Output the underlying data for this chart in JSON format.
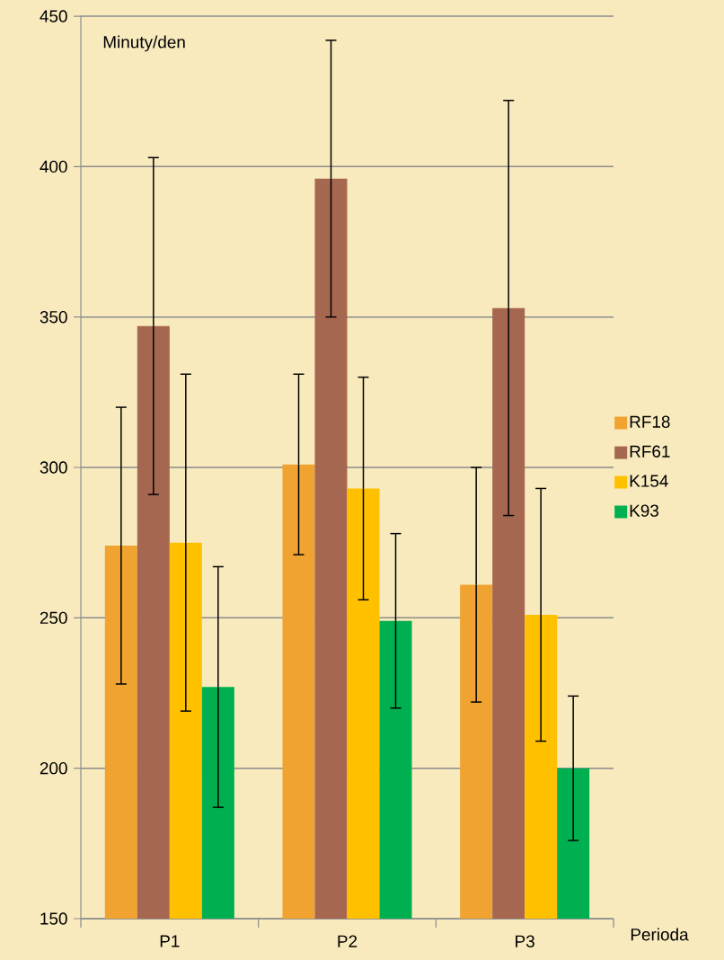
{
  "chart_data": {
    "type": "bar",
    "ylabel": "Minuty/den",
    "xlabel": "Perioda",
    "categories": [
      "P1",
      "P2",
      "P3"
    ],
    "ylim": [
      150,
      450
    ],
    "yticks": [
      150,
      200,
      250,
      300,
      350,
      400,
      450
    ],
    "grid": "y",
    "legend": "right",
    "series": [
      {
        "name": "RF18",
        "color": "#f0a330",
        "values": [
          274,
          301,
          261
        ],
        "errors": [
          46,
          30,
          39
        ]
      },
      {
        "name": "RF61",
        "color": "#a66750",
        "values": [
          347,
          396,
          353
        ],
        "errors": [
          56,
          46,
          69
        ]
      },
      {
        "name": "K154",
        "color": "#ffc000",
        "values": [
          275,
          293,
          251
        ],
        "errors": [
          56,
          37,
          42
        ]
      },
      {
        "name": "K93",
        "color": "#00b050",
        "values": [
          227,
          249,
          200
        ],
        "errors": [
          40,
          29,
          24
        ]
      }
    ]
  }
}
